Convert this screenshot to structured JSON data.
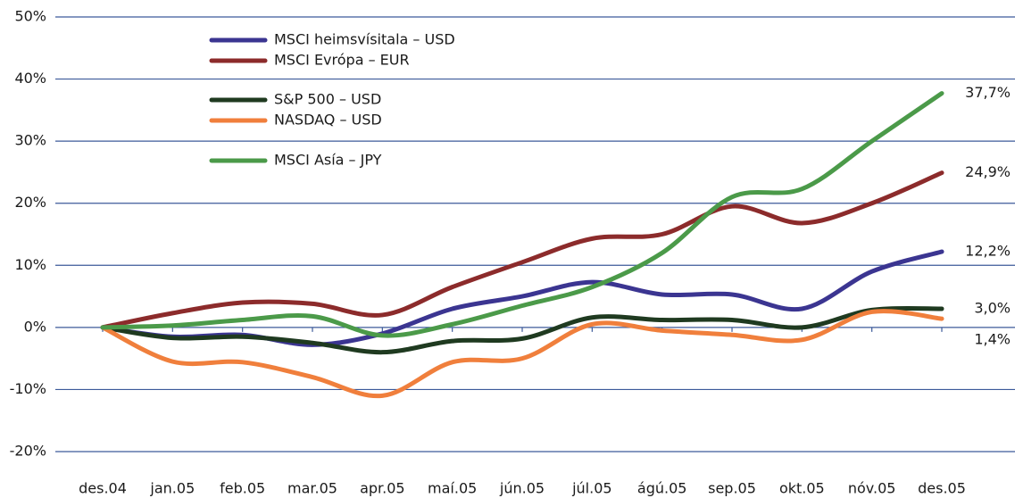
{
  "chart_data": {
    "type": "line",
    "categories": [
      "des.04",
      "jan.05",
      "feb.05",
      "mar.05",
      "apr.05",
      "maí.05",
      "jún.05",
      "júl.05",
      "ágú.05",
      "sep.05",
      "okt.05",
      "nóv.05",
      "des.05"
    ],
    "series": [
      {
        "name": "MSCI heimsvísitala – USD",
        "color": "#3b3591",
        "values": [
          0,
          -1.5,
          -1.2,
          -2.8,
          -1,
          3,
          5,
          7.3,
          5.3,
          5.3,
          3,
          9,
          12.2
        ],
        "value_labels": [
          null,
          null,
          null,
          null,
          null,
          null,
          null,
          null,
          null,
          null,
          null,
          null,
          "12,2%"
        ]
      },
      {
        "name": "MSCI Evrópa – EUR",
        "color": "#8c2b2b",
        "values": [
          0,
          2.3,
          4,
          3.8,
          2,
          6.5,
          10.5,
          14.3,
          15,
          19.5,
          16.8,
          20,
          24.9
        ],
        "value_labels": [
          null,
          null,
          null,
          null,
          null,
          null,
          null,
          null,
          null,
          null,
          null,
          null,
          "24,9%"
        ]
      },
      {
        "name": "S&P 500 – USD",
        "color": "#1f3a20",
        "values": [
          0,
          -1.7,
          -1.5,
          -2.5,
          -4,
          -2.2,
          -1.8,
          1.6,
          1.2,
          1.2,
          0,
          2.8,
          3.0
        ],
        "value_labels": [
          null,
          null,
          null,
          null,
          null,
          null,
          null,
          null,
          null,
          null,
          null,
          null,
          "3,0%"
        ]
      },
      {
        "name": "NASDAQ – USD",
        "color": "#f07f3c",
        "values": [
          0,
          -5.5,
          -5.6,
          -8,
          -11,
          -5.6,
          -5,
          0.5,
          -0.5,
          -1.2,
          -2,
          2.5,
          1.4
        ],
        "value_labels": [
          null,
          null,
          null,
          null,
          null,
          null,
          null,
          null,
          null,
          null,
          null,
          null,
          "1,4%"
        ]
      },
      {
        "name": "MSCI Asía – JPY",
        "color": "#4b9a49",
        "values": [
          0,
          0.3,
          1.2,
          1.8,
          -1.3,
          0.5,
          3.5,
          6.5,
          12,
          21,
          22.3,
          30,
          37.7
        ],
        "value_labels": [
          null,
          null,
          null,
          null,
          null,
          null,
          null,
          null,
          null,
          null,
          null,
          null,
          "37,7%"
        ]
      }
    ],
    "ylim": [
      -20,
      50
    ],
    "yticks": [
      {
        "value": -20,
        "label": "-20%"
      },
      {
        "value": -10,
        "label": "-10%"
      },
      {
        "value": 0,
        "label": "0%"
      },
      {
        "value": 10,
        "label": "10%"
      },
      {
        "value": 20,
        "label": "20%"
      },
      {
        "value": 30,
        "label": "30%"
      },
      {
        "value": 40,
        "label": "40%"
      },
      {
        "value": 50,
        "label": "50%"
      }
    ],
    "grid": true,
    "legend": "top-left"
  }
}
